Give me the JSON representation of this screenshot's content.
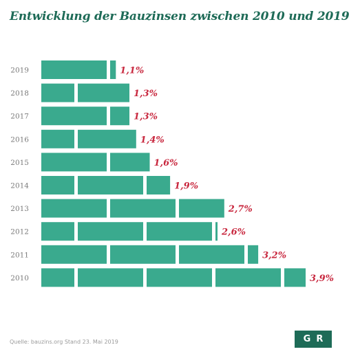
{
  "title": "Entwicklung der Bauzinsen zwischen 2010 und 2019",
  "source": "Quelle: bauzins.org Stand 23. Mai 2019",
  "logo_text": "GR",
  "colors": {
    "bar": "#3aaa8e",
    "value_label": "#c8273e",
    "year_label": "#7a7a7a",
    "title": "#1e6b57",
    "logo_bg": "#1e6b57"
  },
  "chart_data": {
    "type": "bar",
    "orientation": "horizontal",
    "title": "Entwicklung der Bauzinsen zwischen 2010 und 2019",
    "categories": [
      "2019",
      "2018",
      "2017",
      "2016",
      "2015",
      "2014",
      "2013",
      "2012",
      "2011",
      "2010"
    ],
    "values": [
      1.1,
      1.3,
      1.3,
      1.4,
      1.6,
      1.9,
      2.7,
      2.6,
      3.2,
      3.9
    ],
    "value_labels": [
      "1,1%",
      "1,3%",
      "1,3%",
      "1,4%",
      "1,6%",
      "1,9%",
      "2,7%",
      "2,6%",
      "3,2%",
      "3,9%"
    ],
    "xlim": [
      0,
      3.9
    ],
    "grid": false,
    "legend": "none"
  }
}
